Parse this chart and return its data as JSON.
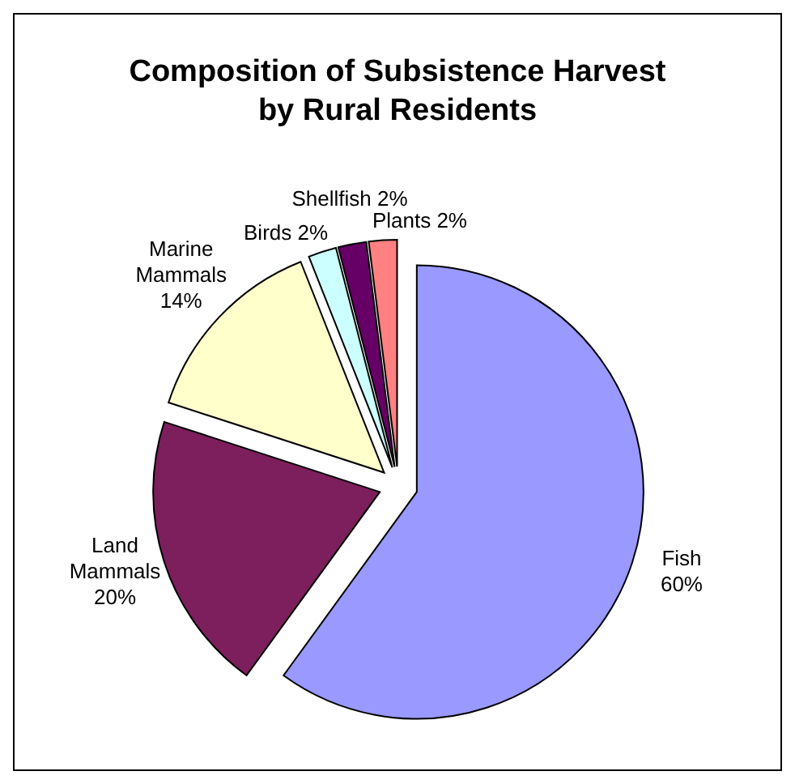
{
  "chart_data": {
    "type": "pie",
    "title": "Composition of Subsistence Harvest by Rural Residents",
    "categories": [
      "Fish",
      "Land Mammals",
      "Marine Mammals",
      "Birds",
      "Shellfish",
      "Plants"
    ],
    "values": [
      60,
      20,
      14,
      2,
      2,
      2
    ],
    "value_labels": [
      "60%",
      "20%",
      "14%",
      "2%",
      "2%",
      "2%"
    ],
    "colors": [
      "#9999ff",
      "#7d1f5c",
      "#ffffcc",
      "#ccffff",
      "#660066",
      "#ff8080"
    ]
  }
}
